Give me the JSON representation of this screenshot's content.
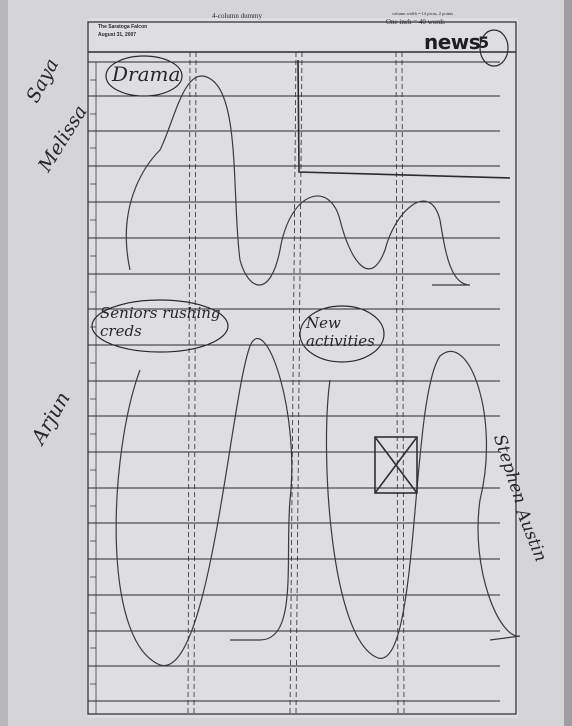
{
  "header": {
    "publication": "The Saratoga Falcon",
    "date": "August 31, 2007",
    "title": "4-column dummy",
    "column_info": "column width = 14 picas, 2 points",
    "inch_info": "One inch = 40 words",
    "section": "news",
    "section_number": "5"
  },
  "annotations": {
    "story_top": "Drama",
    "story_left": "Seniors rushing creds",
    "story_right": "New activities",
    "names_top": [
      "Saya",
      "Melissa"
    ],
    "name_left": "Arjun",
    "names_right": [
      "Stephen",
      "Austin"
    ]
  }
}
